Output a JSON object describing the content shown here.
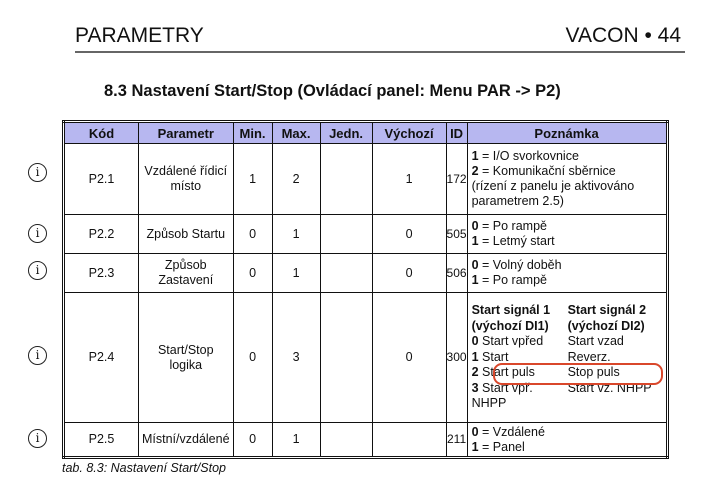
{
  "header": {
    "left": "PARAMETRY",
    "right": "VACON • 44"
  },
  "section_title": "8.3  Nastavení Start/Stop (Ovládací panel: Menu PAR -> P2)",
  "columns": [
    "Kód",
    "Parametr",
    "Min.",
    "Max.",
    "Jedn.",
    "Výchozí",
    "ID",
    "Poznámka"
  ],
  "rows": [
    {
      "code": "P2.1",
      "param": "Vzdálené řídicí místo",
      "min": "1",
      "max": "2",
      "unit": "",
      "default": "1",
      "id": "172",
      "notes": [
        [
          "1",
          " = I/O svorkovnice"
        ],
        [
          "2",
          " = Komunikační sběrnice"
        ],
        [
          "",
          "(rízení z panelu je aktivováno parametrem 2.5)"
        ]
      ]
    },
    {
      "code": "P2.2",
      "param": "Způsob Startu",
      "min": "0",
      "max": "1",
      "unit": "",
      "default": "0",
      "id": "505",
      "notes": [
        [
          "0",
          " = Po rampě"
        ],
        [
          "1",
          " = Letmý start"
        ]
      ]
    },
    {
      "code": "P2.3",
      "param": "Způsob Zastavení",
      "min": "0",
      "max": "1",
      "unit": "",
      "default": "0",
      "id": "506",
      "notes": [
        [
          "0",
          " = Volný doběh"
        ],
        [
          "1",
          " = Po rampě"
        ]
      ]
    },
    {
      "code": "P2.4",
      "param": "Start/Stop logika",
      "min": "0",
      "max": "3",
      "unit": "",
      "default": "0",
      "id": "300",
      "logic": {
        "head1": "Start signál 1 (výchozí DI1)",
        "head2": "Start signál 2 (výchozí DI2)",
        "items": [
          [
            "0",
            "Start vpřed",
            "Start vzad"
          ],
          [
            "1",
            "Start",
            "Reverz."
          ],
          [
            "2",
            "Start puls",
            "Stop puls"
          ],
          [
            "3",
            "Start vpř. NHPP",
            "Start vz. NHPP"
          ]
        ]
      }
    },
    {
      "code": "P2.5",
      "param": "Místní/vzdálené",
      "min": "0",
      "max": "1",
      "unit": "",
      "default": "",
      "id": "211",
      "notes": [
        [
          "0",
          " = Vzdálené"
        ],
        [
          "1",
          " = Panel"
        ]
      ]
    }
  ],
  "info_icon": "info-circle-icon",
  "highlight_color": "#d9472b",
  "header_color": "#b7b7f0",
  "caption": "tab. 8.3: Nastavení Start/Stop"
}
